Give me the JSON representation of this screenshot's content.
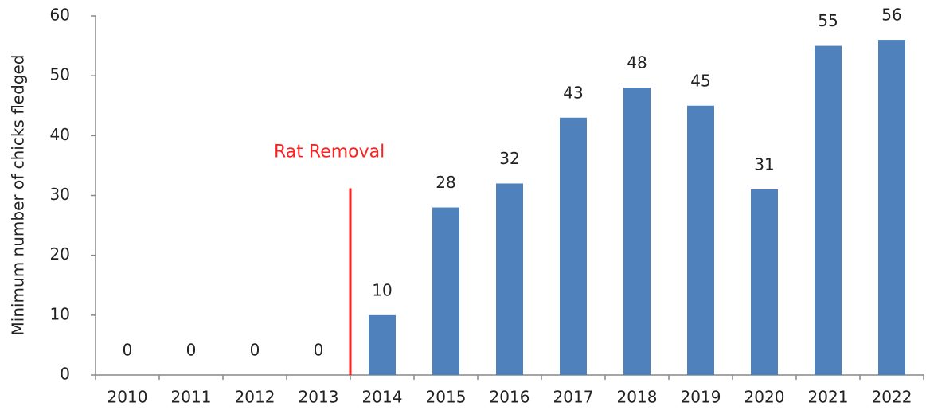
{
  "chart_data": {
    "type": "bar",
    "ylabel": "Minimum number of chicks fledged",
    "categories": [
      "2010",
      "2011",
      "2012",
      "2013",
      "2014",
      "2015",
      "2016",
      "2017",
      "2018",
      "2019",
      "2020",
      "2021",
      "2022"
    ],
    "values": [
      0,
      0,
      0,
      0,
      10,
      28,
      32,
      43,
      48,
      45,
      31,
      55,
      56
    ],
    "color": "#4f81bd",
    "ylim": [
      0,
      60
    ],
    "yticks": [
      0,
      10,
      20,
      30,
      40,
      50,
      60
    ],
    "annotation": {
      "text": "Rat Removal",
      "color": "#ff2020"
    }
  }
}
